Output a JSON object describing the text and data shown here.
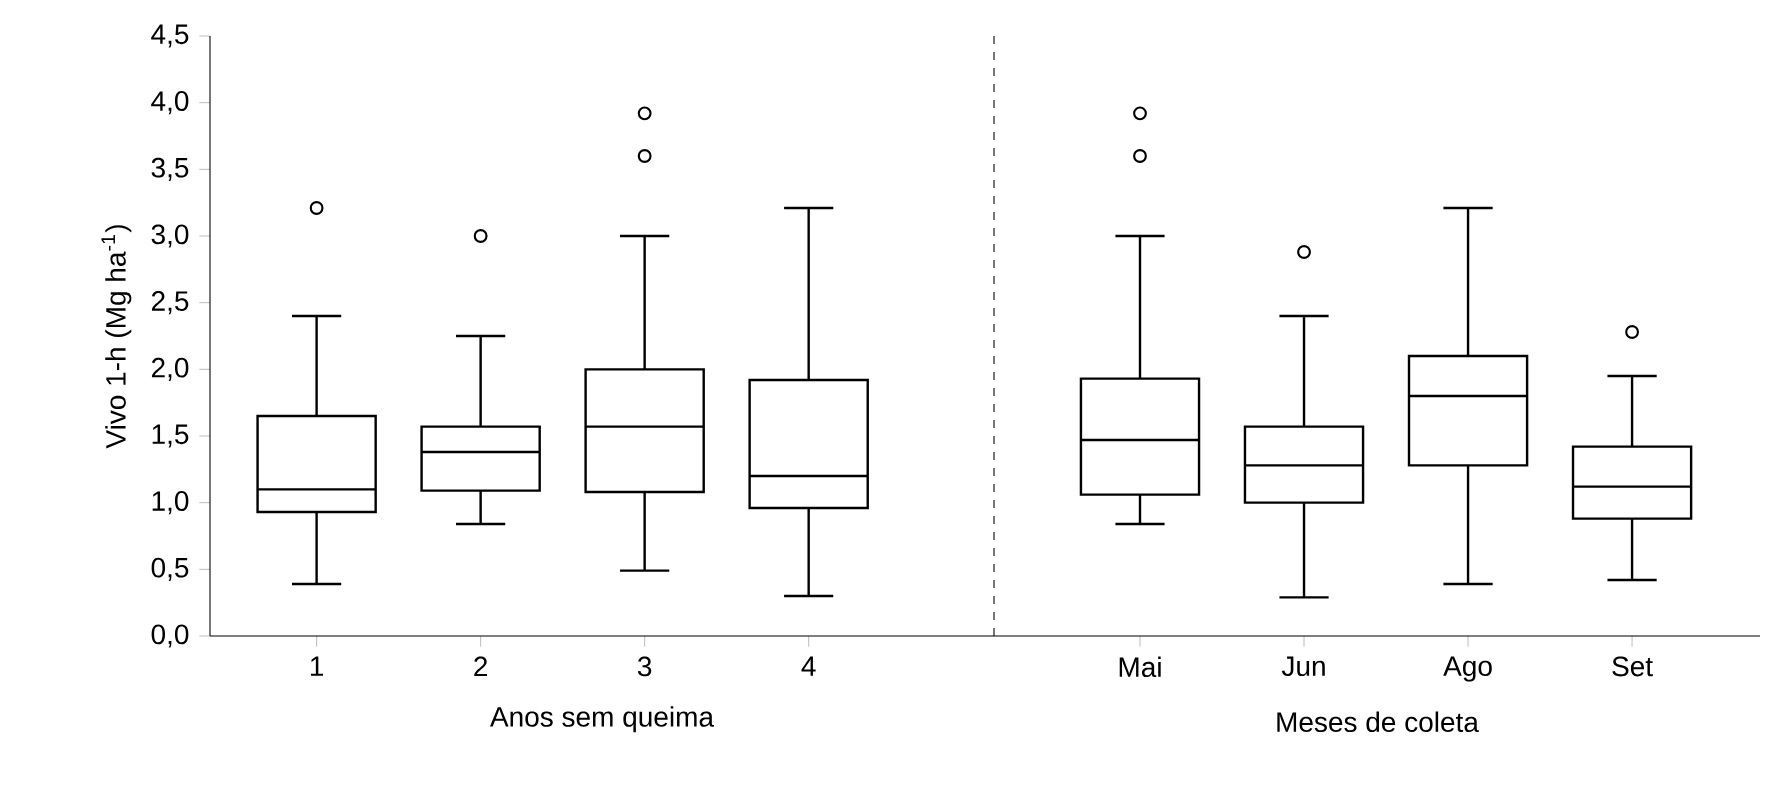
{
  "chart_data": [
    {
      "type": "box",
      "xlabel": "Anos sem queima",
      "ylabel": "Vivo 1-h (Mg ha$^{-1}$)",
      "categories": [
        "1",
        "2",
        "3",
        "4"
      ],
      "marker": "circle",
      "boxes": [
        {
          "low": 0.39,
          "q1": 0.93,
          "median": 1.1,
          "q3": 1.65,
          "high": 2.4,
          "outliers": [
            3.21
          ]
        },
        {
          "low": 0.84,
          "q1": 1.09,
          "median": 1.38,
          "q3": 1.57,
          "high": 2.25,
          "outliers": [
            3.0
          ]
        },
        {
          "low": 0.49,
          "q1": 1.08,
          "median": 1.57,
          "q3": 2.0,
          "high": 3.0,
          "outliers": [
            3.6,
            3.92
          ]
        },
        {
          "low": 0.3,
          "q1": 0.96,
          "median": 1.2,
          "q3": 1.92,
          "high": 3.21
        }
      ],
      "ylim": [
        0,
        4.5
      ],
      "yticks": [
        {
          "value": 0,
          "label": "0,0"
        },
        {
          "value": 0.5,
          "label": "0,5"
        },
        {
          "value": 1,
          "label": "1,0"
        },
        {
          "value": 1.5,
          "label": "1,5"
        },
        {
          "value": 2,
          "label": "2,0"
        },
        {
          "value": 2.5,
          "label": "2,5"
        },
        {
          "value": 3,
          "label": "3,0"
        },
        {
          "value": 3.5,
          "label": "3,5"
        },
        {
          "value": 4,
          "label": "4,0"
        },
        {
          "value": 4.5,
          "label": "4,5"
        }
      ]
    },
    {
      "type": "box",
      "xlabel": "Meses de coleta",
      "categories": [
        "Mai",
        "Jun",
        "Ago",
        "Set"
      ],
      "marker": "circle",
      "tick_labels": "x",
      "boxes": [
        {
          "low": 0.84,
          "q1": 1.06,
          "median": 1.47,
          "q3": 1.93,
          "high": 3.0,
          "outliers": [
            3.6,
            3.92
          ]
        },
        {
          "low": 0.29,
          "q1": 1.0,
          "median": 1.28,
          "q3": 1.57,
          "high": 2.4,
          "outliers": [
            2.88
          ]
        },
        {
          "low": 0.39,
          "q1": 1.28,
          "median": 1.8,
          "q3": 2.1,
          "high": 3.21
        },
        {
          "low": 0.42,
          "q1": 0.88,
          "median": 1.12,
          "q3": 1.42,
          "high": 1.95,
          "outliers": [
            2.28
          ]
        }
      ],
      "ylim": [
        0,
        4.5
      ]
    }
  ]
}
